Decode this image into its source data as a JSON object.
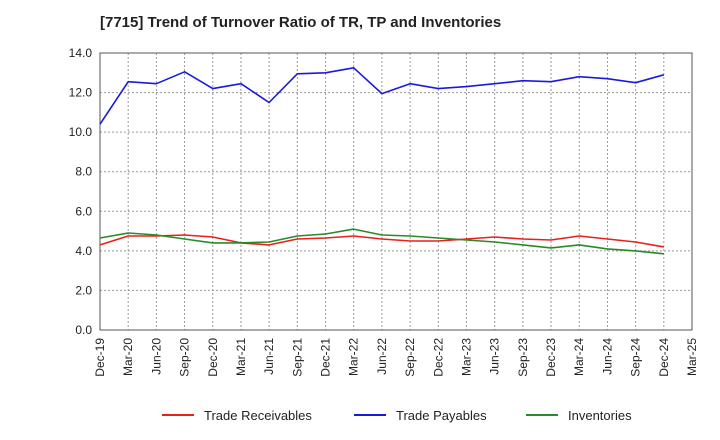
{
  "chart_data": {
    "type": "line",
    "title": "[7715]  Trend of Turnover Ratio of TR, TP and Inventories",
    "xlabel": "",
    "ylabel": "",
    "ylim": [
      0,
      14
    ],
    "yticks": [
      "0.0",
      "2.0",
      "4.0",
      "6.0",
      "8.0",
      "10.0",
      "12.0",
      "14.0"
    ],
    "x": [
      "Dec-19",
      "Mar-20",
      "Jun-20",
      "Sep-20",
      "Dec-20",
      "Mar-21",
      "Jun-21",
      "Sep-21",
      "Dec-21",
      "Mar-22",
      "Jun-22",
      "Sep-22",
      "Dec-22",
      "Mar-23",
      "Jun-23",
      "Sep-23",
      "Dec-23",
      "Mar-24",
      "Jun-24",
      "Sep-24",
      "Dec-24",
      "Mar-25"
    ],
    "grid": true,
    "legend_position": "bottom",
    "series": [
      {
        "name": "Trade Receivables",
        "color": "#e8201c",
        "values": [
          4.3,
          4.75,
          4.75,
          4.8,
          4.7,
          4.4,
          4.3,
          4.6,
          4.65,
          4.75,
          4.6,
          4.5,
          4.5,
          4.6,
          4.7,
          4.6,
          4.55,
          4.75,
          4.6,
          4.45,
          4.2,
          null
        ]
      },
      {
        "name": "Trade Payables",
        "color": "#1a1adf",
        "values": [
          10.4,
          12.55,
          12.45,
          13.05,
          12.2,
          12.45,
          11.5,
          12.95,
          13.0,
          13.25,
          11.95,
          12.45,
          12.2,
          12.3,
          12.45,
          12.6,
          12.55,
          12.8,
          12.7,
          12.5,
          12.9,
          null
        ]
      },
      {
        "name": "Inventories",
        "color": "#2a8a2a",
        "values": [
          4.65,
          4.9,
          4.8,
          4.6,
          4.4,
          4.4,
          4.45,
          4.75,
          4.85,
          5.1,
          4.8,
          4.75,
          4.65,
          4.55,
          4.45,
          4.3,
          4.15,
          4.3,
          4.1,
          4.0,
          3.85,
          null
        ]
      }
    ]
  }
}
